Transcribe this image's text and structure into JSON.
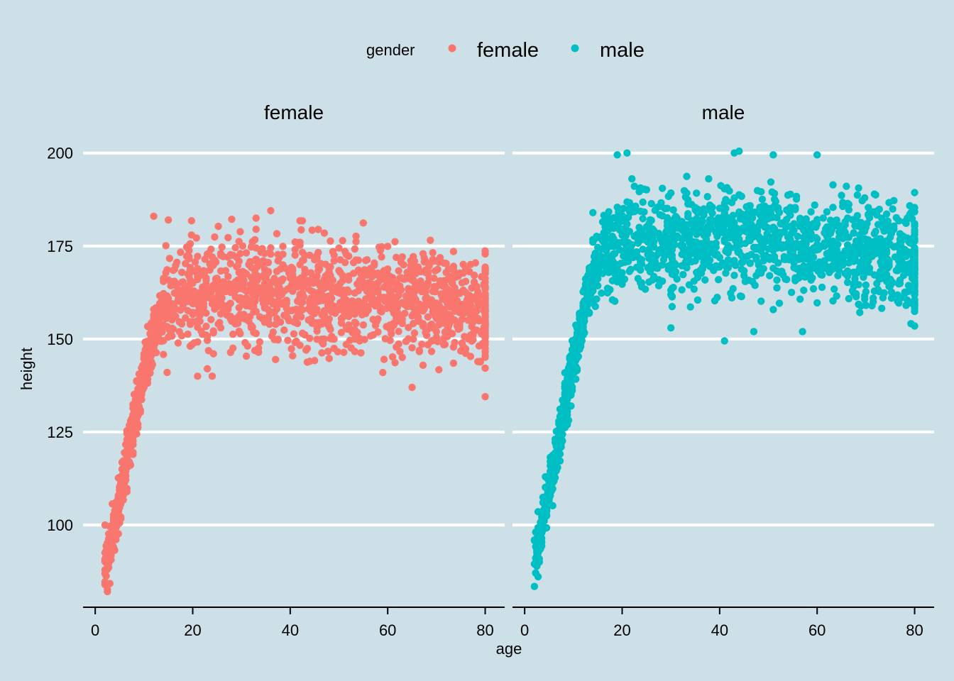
{
  "chart_data": {
    "type": "scatter",
    "title": "",
    "xlabel": "age",
    "ylabel": "height",
    "xlim": [
      -2.5,
      84
    ],
    "ylim": [
      80,
      205
    ],
    "xticks": [
      0,
      20,
      40,
      60,
      80
    ],
    "yticks": [
      100,
      125,
      150,
      175,
      200
    ],
    "grid": "horizontal major",
    "background": "#cde0e7",
    "legend": {
      "title": "gender",
      "position": "top",
      "entries": [
        {
          "label": "female",
          "color": "#F8766D"
        },
        {
          "label": "male",
          "color": "#00BFC4"
        }
      ]
    },
    "facets": [
      {
        "label": "female",
        "color": "#F8766D",
        "growth_curve": [
          [
            2,
            87
          ],
          [
            4,
            100
          ],
          [
            6,
            114
          ],
          [
            8,
            128
          ],
          [
            10,
            141
          ],
          [
            12,
            152
          ],
          [
            14,
            159
          ],
          [
            16,
            162
          ],
          [
            20,
            163
          ],
          [
            40,
            163
          ],
          [
            60,
            161
          ],
          [
            80,
            158
          ]
        ],
        "adult_spread": {
          "from_age": 14,
          "sd": 7.5
        },
        "points": [
          [
            2,
            84
          ],
          [
            2,
            100
          ],
          [
            12,
            183
          ],
          [
            15,
            182
          ],
          [
            36,
            184.5
          ],
          [
            33,
            182.5
          ],
          [
            42,
            181.8
          ],
          [
            55,
            181.2
          ],
          [
            21,
            140
          ],
          [
            24,
            140
          ],
          [
            23,
            142
          ],
          [
            65,
            137
          ],
          [
            80,
            134.5
          ],
          [
            59,
            141
          ],
          [
            44,
            144
          ]
        ]
      },
      {
        "label": "male",
        "color": "#00BFC4",
        "growth_curve": [
          [
            2,
            89
          ],
          [
            4,
            103
          ],
          [
            6,
            116
          ],
          [
            8,
            130
          ],
          [
            10,
            144
          ],
          [
            12,
            157
          ],
          [
            14,
            167
          ],
          [
            16,
            173
          ],
          [
            20,
            176
          ],
          [
            40,
            177
          ],
          [
            60,
            175
          ],
          [
            80,
            171
          ]
        ],
        "adult_spread": {
          "from_age": 14,
          "sd": 7
        },
        "points": [
          [
            2,
            83.5
          ],
          [
            19,
            199.5
          ],
          [
            21,
            200
          ],
          [
            44,
            200.5
          ],
          [
            43,
            200
          ],
          [
            51,
            199.5
          ],
          [
            60,
            199.5
          ],
          [
            41,
            149.5
          ],
          [
            47,
            152
          ],
          [
            57,
            152
          ],
          [
            80,
            153.5
          ],
          [
            30,
            153
          ]
        ]
      }
    ]
  }
}
